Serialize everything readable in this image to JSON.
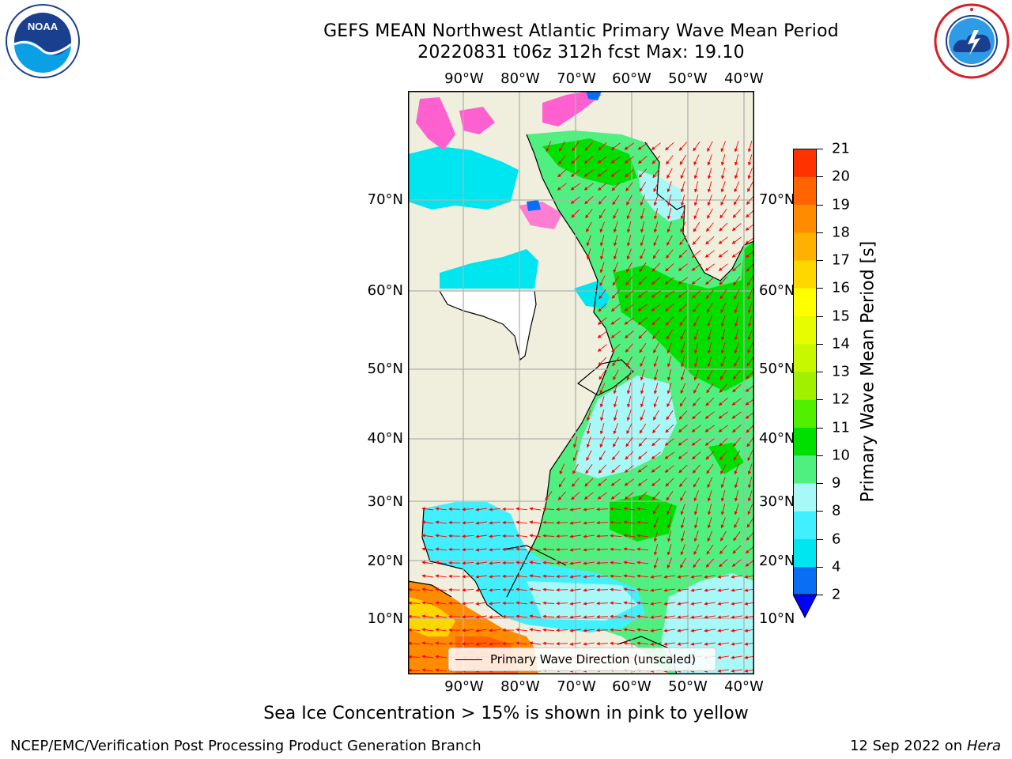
{
  "title_line1": "GEFS MEAN Northwest Atlantic Primary Wave Mean Period",
  "title_line2": "20220831 t06z 312h fcst   Max: 19.10",
  "logos": {
    "left": "noaa-logo",
    "right": "nws-logo"
  },
  "map": {
    "lon_labels": [
      "90°W",
      "80°W",
      "70°W",
      "60°W",
      "50°W",
      "40°W"
    ],
    "lat_labels": [
      "70°N",
      "60°N",
      "50°N",
      "40°N",
      "30°N",
      "20°N",
      "10°N"
    ],
    "legend_label": "Primary Wave Direction (unscaled)",
    "colors": {
      "land": "#f0eedc",
      "coast": "#000000",
      "grid": "#b0b0b0",
      "arrow": "#ff0000"
    }
  },
  "colorbar": {
    "title": "Primary Wave Mean Period [s]",
    "ticks": [
      "2",
      "4",
      "6",
      "8",
      "9",
      "10",
      "11",
      "12",
      "13",
      "14",
      "15",
      "16",
      "17",
      "18",
      "19",
      "20",
      "21"
    ],
    "colors": [
      "#0a6ef5",
      "#00e6f0",
      "#40f0ff",
      "#a8f8f8",
      "#50f080",
      "#00e000",
      "#50f000",
      "#a0f000",
      "#c8f800",
      "#e8fc00",
      "#ffff00",
      "#ffd700",
      "#ffb000",
      "#ff8c00",
      "#ff6400",
      "#ff3200",
      "#ff0000"
    ],
    "under_color": "#0000ff"
  },
  "footnote": "Sea Ice Concentration > 15% is shown in pink to yellow",
  "credit": "NCEP/EMC/Verification Post Processing Product Generation Branch",
  "date_text": "12 Sep 2022 on",
  "machine": "Hera"
}
